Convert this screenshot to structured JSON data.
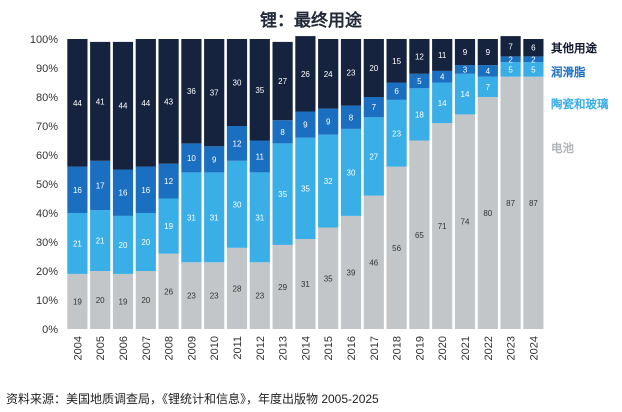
{
  "title": "锂：最终用途",
  "source": "资料来源：美国地质调查局，《锂统计和信息》，年度出版物 2005-2025",
  "chart_data": {
    "type": "bar",
    "stacked": true,
    "percent": true,
    "title": "锂：最终用途",
    "ylim": [
      0,
      100
    ],
    "yticks": [
      "0%",
      "10%",
      "20%",
      "30%",
      "40%",
      "50%",
      "60%",
      "70%",
      "80%",
      "90%",
      "100%"
    ],
    "categories": [
      "2004",
      "2005",
      "2006",
      "2007",
      "2008",
      "2009",
      "2010",
      "2011",
      "2012",
      "2013",
      "2014",
      "2015",
      "2016",
      "2017",
      "2018",
      "2019",
      "2020",
      "2021",
      "2022",
      "2023",
      "2024"
    ],
    "series": [
      {
        "name": "电池",
        "color": "#c3c6c8",
        "label_color": "#333333",
        "values": [
          19,
          20,
          19,
          20,
          26,
          23,
          23,
          28,
          23,
          29,
          31,
          35,
          39,
          46,
          56,
          65,
          71,
          74,
          80,
          87,
          87
        ]
      },
      {
        "name": "陶瓷和玻璃",
        "color": "#3aaee6",
        "label_color": "#ffffff",
        "values": [
          21,
          21,
          20,
          20,
          19,
          31,
          31,
          30,
          31,
          35,
          35,
          32,
          30,
          27,
          23,
          18,
          14,
          14,
          7,
          5,
          5
        ]
      },
      {
        "name": "润滑脂",
        "color": "#1b6fc0",
        "label_color": "#ffffff",
        "values": [
          16,
          17,
          16,
          16,
          12,
          10,
          9,
          12,
          11,
          8,
          9,
          9,
          8,
          7,
          6,
          5,
          4,
          3,
          4,
          2,
          2
        ]
      },
      {
        "name": "其他用途",
        "color": "#15233f",
        "label_color": "#ffffff",
        "values": [
          44,
          41,
          44,
          44,
          43,
          36,
          37,
          30,
          35,
          27,
          26,
          24,
          23,
          20,
          15,
          12,
          11,
          9,
          9,
          7,
          6
        ]
      }
    ],
    "legend_placement": "right",
    "grid": false
  }
}
